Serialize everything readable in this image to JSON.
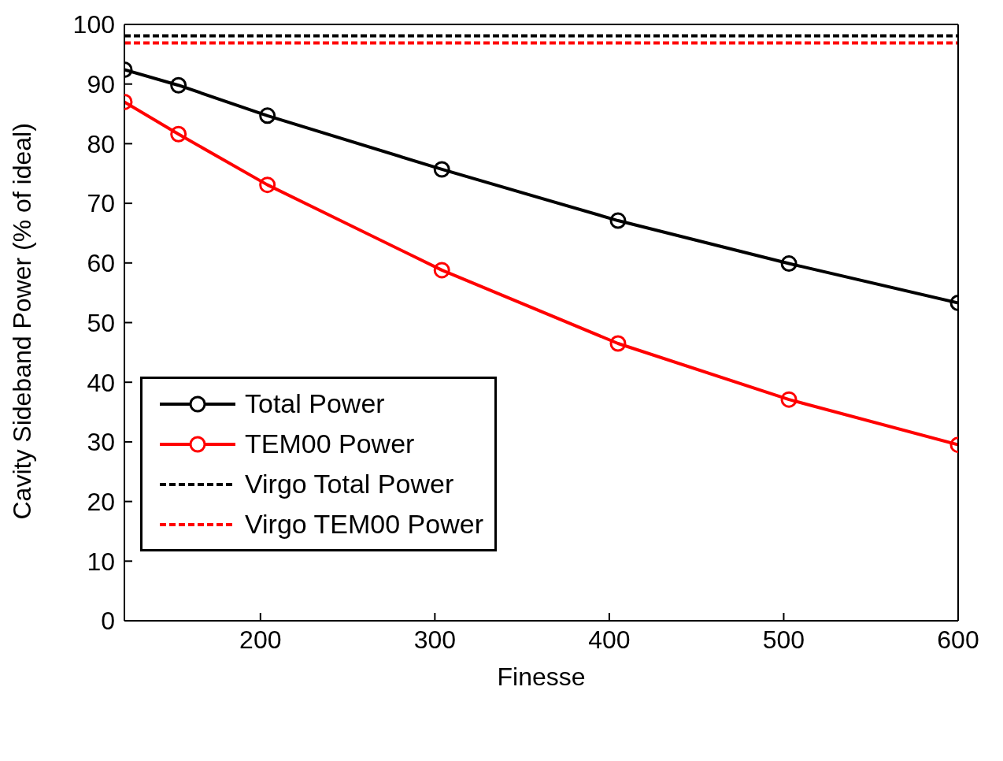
{
  "chart_data": {
    "type": "line",
    "xlabel": "Finesse",
    "ylabel": "Cavity Sideband Power (% of ideal)",
    "x": [
      122,
      153,
      204,
      304,
      405,
      503,
      600
    ],
    "series": [
      {
        "name": "Total Power",
        "color": "#000000",
        "values": [
          92.4,
          89.8,
          84.7,
          75.7,
          67.1,
          59.9,
          53.3
        ]
      },
      {
        "name": "TEM00 Power",
        "color": "#ff0000",
        "values": [
          87.0,
          81.6,
          73.1,
          58.8,
          46.5,
          37.1,
          29.5
        ]
      }
    ],
    "ref_lines": [
      {
        "axis": "y",
        "value": 98.1,
        "label": "Virgo Total Power",
        "color": "#000000",
        "line_style": "dashed"
      },
      {
        "axis": "y",
        "value": 96.9,
        "label": "Virgo TEM00 Power",
        "color": "#ff0000",
        "line_style": "dashed"
      }
    ],
    "xlim": [
      122,
      600
    ],
    "xticks": [
      200,
      300,
      400,
      500,
      600
    ],
    "ylim": [
      0,
      100
    ],
    "yticks": [
      0,
      10,
      20,
      30,
      40,
      50,
      60,
      70,
      80,
      90,
      100
    ],
    "grid": false,
    "legend": "bottom left",
    "marker": "circle",
    "line_style": "solid"
  }
}
